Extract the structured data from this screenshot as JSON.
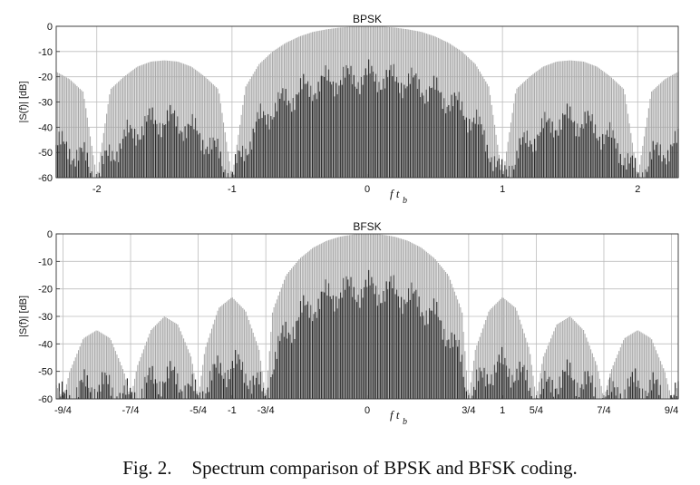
{
  "caption": {
    "figure_label": "Fig. 2.",
    "text": "Spectrum comparison of BPSK and BFSK coding."
  },
  "colors": {
    "envelope": "#a6a6a6",
    "fill": "#2b2b2b",
    "grid": "#bdbdbd",
    "axes": "#333333"
  },
  "chart_data": [
    {
      "type": "area",
      "title": "BPSK",
      "ylabel": "|S(f)| [dB]",
      "xlabel": "f t",
      "xlabel_subscript": "b",
      "xlim": [
        -2.3,
        2.3
      ],
      "ylim": [
        -60,
        0
      ],
      "grid": true,
      "x_ticks": [
        {
          "value": -2,
          "label": "-2"
        },
        {
          "value": -1,
          "label": "-1"
        },
        {
          "value": 0,
          "label": "0"
        },
        {
          "value": 1,
          "label": "1"
        },
        {
          "value": 2,
          "label": "2"
        }
      ],
      "y_ticks": [
        {
          "value": 0,
          "label": "0"
        },
        {
          "value": -10,
          "label": "-10"
        },
        {
          "value": -20,
          "label": "-20"
        },
        {
          "value": -30,
          "label": "-30"
        },
        {
          "value": -40,
          "label": "-40"
        },
        {
          "value": -50,
          "label": "-50"
        },
        {
          "value": -60,
          "label": "-60"
        }
      ],
      "series": [
        {
          "x": [
            -2.3,
            -2.2,
            -2.1,
            -2.0,
            -1.9,
            -1.8,
            -1.7,
            -1.6,
            -1.5,
            -1.4,
            -1.3,
            -1.2,
            -1.1,
            -1.0,
            -0.9,
            -0.8,
            -0.7,
            -0.6,
            -0.5,
            -0.4,
            -0.3,
            -0.2,
            -0.1,
            0.0,
            0.1,
            0.2,
            0.3,
            0.4,
            0.5,
            0.6,
            0.7,
            0.8,
            0.9,
            1.0,
            1.1,
            1.2,
            1.3,
            1.4,
            1.5,
            1.6,
            1.7,
            1.8,
            1.9,
            2.0,
            2.1,
            2.2,
            2.3
          ],
          "y": [
            -18,
            -21,
            -26,
            -60,
            -25,
            -20,
            -16,
            -14,
            -13.5,
            -14,
            -16,
            -20,
            -25,
            -60,
            -24,
            -15,
            -10,
            -6.5,
            -4,
            -2.2,
            -1.2,
            -0.5,
            -0.1,
            0,
            -0.1,
            -0.5,
            -1.2,
            -2.2,
            -4,
            -6.5,
            -10,
            -15,
            -24,
            -60,
            -25,
            -20,
            -16,
            -14,
            -13.5,
            -14,
            -16,
            -20,
            -25,
            -60,
            -26,
            -21,
            -18
          ]
        },
        {
          "x": [
            -2.3,
            -2.2,
            -2.1,
            -2.0,
            -1.9,
            -1.8,
            -1.7,
            -1.6,
            -1.5,
            -1.4,
            -1.3,
            -1.2,
            -1.1,
            -1.0,
            -0.9,
            -0.8,
            -0.7,
            -0.6,
            -0.5,
            -0.4,
            -0.3,
            -0.2,
            -0.1,
            0.0,
            0.1,
            0.2,
            0.3,
            0.4,
            0.5,
            0.6,
            0.7,
            0.8,
            0.9,
            1.0,
            1.1,
            1.2,
            1.3,
            1.4,
            1.5,
            1.6,
            1.7,
            1.8,
            1.9,
            2.0,
            2.1,
            2.2,
            2.3
          ],
          "y": [
            -47,
            -49,
            -52,
            -60,
            -51,
            -45,
            -41,
            -38,
            -37,
            -38,
            -41,
            -45,
            -51,
            -60,
            -48,
            -38,
            -33,
            -29,
            -26,
            -24,
            -22,
            -21,
            -20.5,
            -20,
            -20.5,
            -21,
            -22,
            -24,
            -26,
            -29,
            -33,
            -38,
            -48,
            -60,
            -51,
            -45,
            -41,
            -38,
            -37,
            -38,
            -41,
            -45,
            -51,
            -60,
            -52,
            -49,
            -47
          ]
        }
      ]
    },
    {
      "type": "area",
      "title": "BFSK",
      "ylabel": "|S(f)| [dB]",
      "xlabel": "f t",
      "xlabel_subscript": "b",
      "xlim": [
        -2.3,
        2.3
      ],
      "ylim": [
        -60,
        0
      ],
      "grid": true,
      "x_ticks": [
        {
          "value": -2.25,
          "label": "-9/4"
        },
        {
          "value": -1.75,
          "label": "-7/4"
        },
        {
          "value": -1.25,
          "label": "-5/4"
        },
        {
          "value": -1,
          "label": "-1"
        },
        {
          "value": -0.75,
          "label": "-3/4"
        },
        {
          "value": 0,
          "label": "0"
        },
        {
          "value": 0.75,
          "label": "3/4"
        },
        {
          "value": 1,
          "label": "1"
        },
        {
          "value": 1.25,
          "label": "5/4"
        },
        {
          "value": 1.75,
          "label": "7/4"
        },
        {
          "value": 2.25,
          "label": "9/4"
        }
      ],
      "y_ticks": [
        {
          "value": 0,
          "label": "0"
        },
        {
          "value": -10,
          "label": "-10"
        },
        {
          "value": -20,
          "label": "-20"
        },
        {
          "value": -30,
          "label": "-30"
        },
        {
          "value": -40,
          "label": "-40"
        },
        {
          "value": -50,
          "label": "-50"
        },
        {
          "value": -60,
          "label": "-60"
        }
      ],
      "series": [
        {
          "x": [
            -2.3,
            -2.25,
            -2.2,
            -2.1,
            -2.0,
            -1.9,
            -1.8,
            -1.75,
            -1.7,
            -1.6,
            -1.5,
            -1.4,
            -1.3,
            -1.25,
            -1.2,
            -1.1,
            -1.0,
            -0.9,
            -0.8,
            -0.75,
            -0.7,
            -0.6,
            -0.5,
            -0.4,
            -0.3,
            -0.2,
            -0.1,
            0.0,
            0.1,
            0.2,
            0.3,
            0.4,
            0.5,
            0.6,
            0.7,
            0.75,
            0.8,
            0.9,
            1.0,
            1.1,
            1.2,
            1.25,
            1.3,
            1.4,
            1.5,
            1.6,
            1.7,
            1.75,
            1.8,
            1.9,
            2.0,
            2.1,
            2.2,
            2.25,
            2.3
          ],
          "y": [
            -55,
            -60,
            -50,
            -38,
            -35,
            -38,
            -50,
            -60,
            -48,
            -35,
            -30,
            -33,
            -45,
            -60,
            -42,
            -27,
            -23,
            -28,
            -42,
            -60,
            -28,
            -15,
            -9,
            -5,
            -2.5,
            -1,
            -0.2,
            0,
            -0.2,
            -1,
            -2.5,
            -5,
            -9,
            -15,
            -28,
            -60,
            -42,
            -28,
            -23,
            -27,
            -42,
            -60,
            -45,
            -33,
            -30,
            -35,
            -48,
            -60,
            -50,
            -38,
            -35,
            -38,
            -50,
            -60,
            -55
          ]
        },
        {
          "x": [
            -2.3,
            -2.25,
            -2.2,
            -2.1,
            -2.0,
            -1.9,
            -1.8,
            -1.75,
            -1.7,
            -1.6,
            -1.5,
            -1.4,
            -1.3,
            -1.25,
            -1.2,
            -1.1,
            -1.0,
            -0.9,
            -0.8,
            -0.75,
            -0.7,
            -0.6,
            -0.5,
            -0.4,
            -0.3,
            -0.2,
            -0.1,
            0.0,
            0.1,
            0.2,
            0.3,
            0.4,
            0.5,
            0.6,
            0.7,
            0.75,
            0.8,
            0.9,
            1.0,
            1.1,
            1.2,
            1.25,
            1.3,
            1.4,
            1.5,
            1.6,
            1.7,
            1.75,
            1.8,
            1.9,
            2.0,
            2.1,
            2.2,
            2.25,
            2.3
          ],
          "y": [
            -60,
            -60,
            -59,
            -56,
            -55,
            -56,
            -59,
            -60,
            -58,
            -54,
            -52,
            -53,
            -57,
            -60,
            -55,
            -50,
            -48,
            -50,
            -56,
            -60,
            -47,
            -36,
            -30,
            -26,
            -23,
            -21,
            -20.5,
            -20,
            -20.5,
            -21,
            -23,
            -26,
            -30,
            -36,
            -47,
            -60,
            -56,
            -50,
            -48,
            -50,
            -55,
            -60,
            -57,
            -53,
            -52,
            -54,
            -58,
            -60,
            -59,
            -56,
            -55,
            -56,
            -59,
            -60,
            -60
          ]
        }
      ]
    }
  ]
}
